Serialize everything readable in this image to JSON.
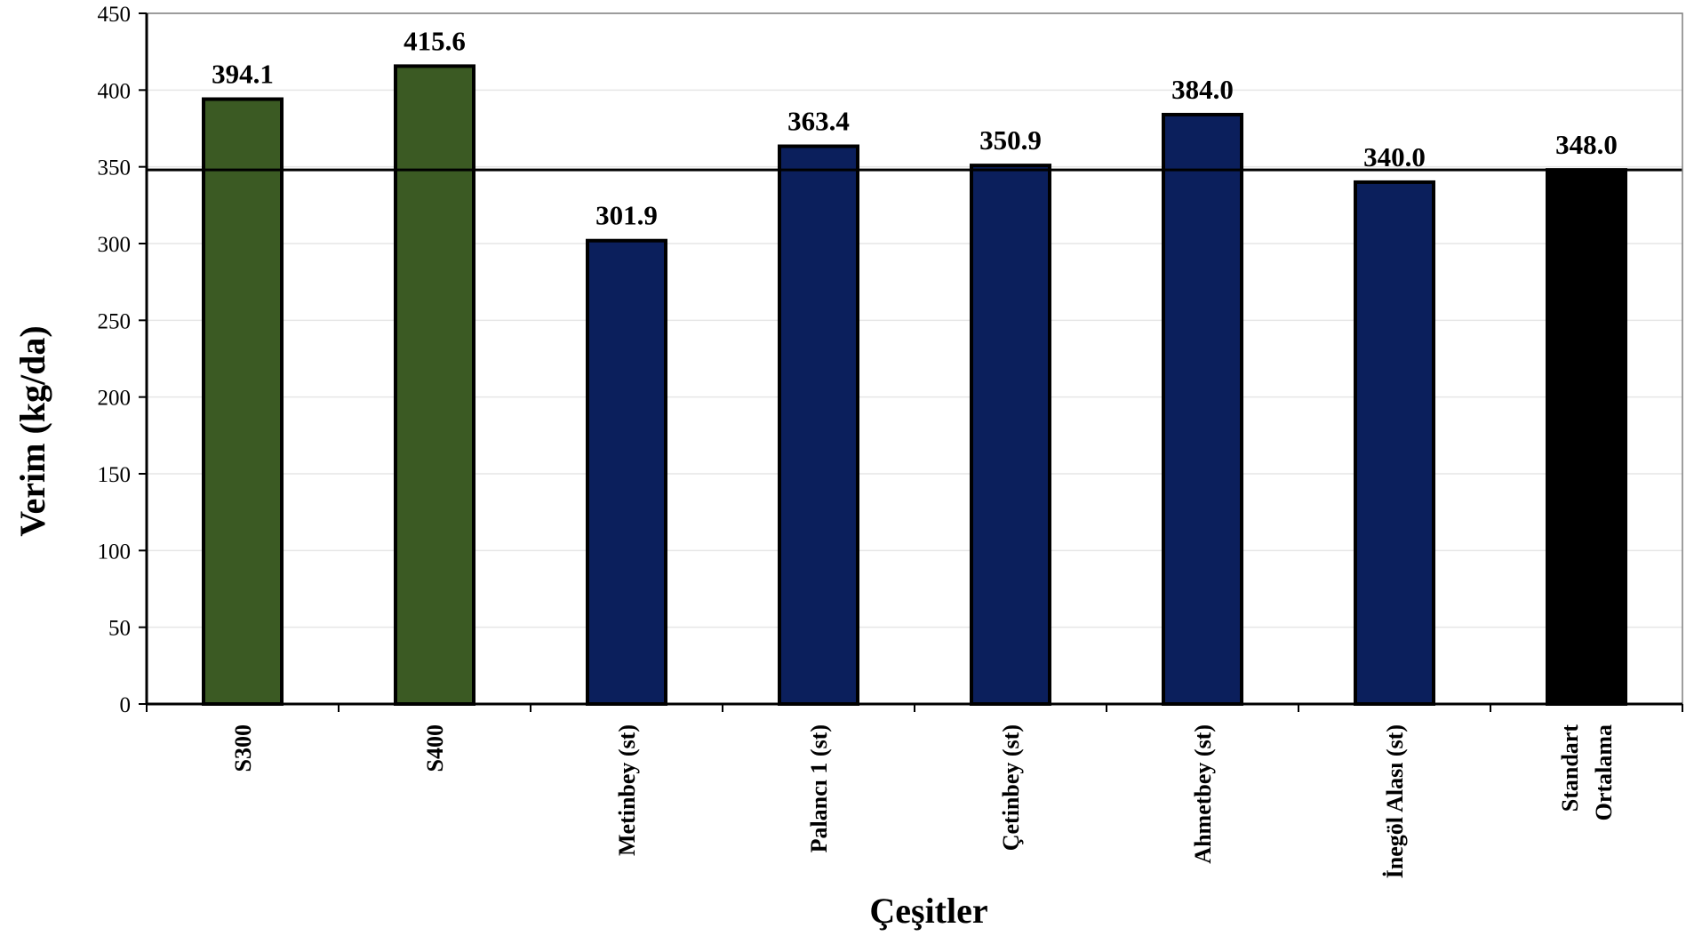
{
  "chart_data": {
    "type": "bar",
    "xlabel": "Çeşitler",
    "ylabel": "Verim (kg/da)",
    "ylim": [
      0,
      450
    ],
    "yticks": [
      0,
      50,
      100,
      150,
      200,
      250,
      300,
      350,
      400,
      450
    ],
    "grid": true,
    "reference_line": 348.0,
    "categories": [
      [
        "S300"
      ],
      [
        "S400"
      ],
      [
        "Metinbey (st)"
      ],
      [
        "Palancı 1 (st)"
      ],
      [
        "Çetinbey (st)"
      ],
      [
        "Ahmetbey (st)"
      ],
      [
        "İnegöl Alası (st)"
      ],
      [
        "Standart",
        "Ortalama"
      ]
    ],
    "values": [
      394.1,
      415.6,
      301.9,
      363.4,
      350.9,
      384.0,
      340.0,
      348.0
    ],
    "value_labels": [
      "394.1",
      "415.6",
      "301.9",
      "363.4",
      "350.9",
      "384.0",
      "340.0",
      "348.0"
    ],
    "bar_colors": [
      "#3b5a23",
      "#3b5a23",
      "#0b1f5c",
      "#0b1f5c",
      "#0b1f5c",
      "#0b1f5c",
      "#0b1f5c",
      "#000000"
    ]
  }
}
